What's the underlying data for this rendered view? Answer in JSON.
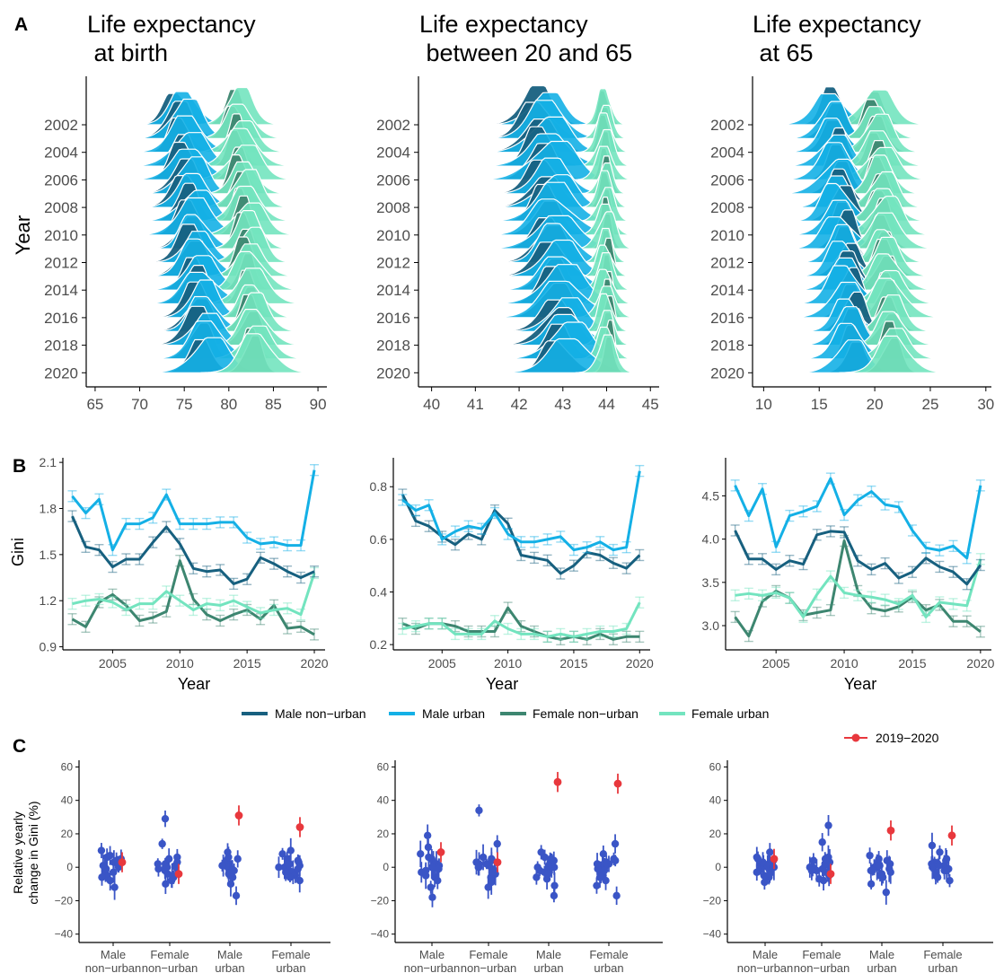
{
  "panel_letters": {
    "a": "A",
    "b": "B",
    "c": "C"
  },
  "colors": {
    "male_nonurban": "#17607f",
    "male_urban": "#14b0e6",
    "female_nonurban": "#3d8670",
    "female_urban": "#73e4bf",
    "highlight": "#e8383d",
    "other": "#3a55c6",
    "axis": "#000000",
    "tick_label": "#4d4d4d"
  },
  "panelA": {
    "ylabel": "Year",
    "year_ticks": [
      "2002",
      "2004",
      "2006",
      "2008",
      "2010",
      "2012",
      "2014",
      "2016",
      "2018",
      "2020"
    ],
    "subplots": [
      {
        "title_lines": [
          "Life expectancy",
          " at birth"
        ],
        "xlim": [
          64,
          91
        ],
        "xticks": [
          "65",
          "70",
          "75",
          "80",
          "85",
          "90"
        ]
      },
      {
        "title_lines": [
          "Life expectancy",
          " between 20 and 65"
        ],
        "xlim": [
          39.7,
          45.2
        ],
        "xticks": [
          "40",
          "41",
          "42",
          "43",
          "44",
          "45"
        ]
      },
      {
        "title_lines": [
          "Life expectancy",
          " at 65"
        ],
        "xlim": [
          9,
          30.5
        ],
        "xticks": [
          "10",
          "15",
          "20",
          "25",
          "30"
        ]
      }
    ]
  },
  "panelB": {
    "ylabel": "Gini",
    "xlabel": "Year",
    "xticks": [
      "2005",
      "2010",
      "2015",
      "2020"
    ]
  },
  "legend": {
    "items": [
      {
        "label": "Male non−urban",
        "color": "#17607f"
      },
      {
        "label": "Male urban",
        "color": "#14b0e6"
      },
      {
        "label": "Female non−urban",
        "color": "#3d8670"
      },
      {
        "label": "Female urban",
        "color": "#73e4bf"
      }
    ]
  },
  "panelC": {
    "legend_label": "2019−2020",
    "ylabel_lines": [
      "Relative yearly",
      "change in Gini (%)"
    ],
    "yticks": [
      "60",
      "40",
      "20",
      "0",
      "−20",
      "−40"
    ],
    "categories": [
      [
        "Male",
        "non−urban"
      ],
      [
        "Female",
        "non−urban"
      ],
      [
        "Male",
        "urban"
      ],
      [
        "Female",
        "urban"
      ]
    ]
  },
  "chart_data": [
    {
      "type": "ridgeline",
      "title": "Life expectancy at birth",
      "ylabel": "Year",
      "xlim": [
        64,
        91
      ],
      "years": [
        2002,
        2003,
        2004,
        2005,
        2006,
        2007,
        2008,
        2009,
        2010,
        2011,
        2012,
        2013,
        2014,
        2015,
        2016,
        2017,
        2018,
        2019,
        2020
      ],
      "series": [
        {
          "name": "Male non-urban",
          "peak_start": 74.3,
          "peak_end": 76.8,
          "sd": 1.4
        },
        {
          "name": "Male urban",
          "peak_start": 75.0,
          "peak_end": 77.9,
          "sd": 1.8
        },
        {
          "name": "Female non-urban",
          "peak_start": 80.6,
          "peak_end": 82.6,
          "sd": 1.0
        },
        {
          "name": "Female urban",
          "peak_start": 81.2,
          "peak_end": 83.3,
          "sd": 1.6
        }
      ]
    },
    {
      "type": "ridgeline",
      "title": "Life expectancy between 20 and 65",
      "ylabel": "Year",
      "xlim": [
        39.7,
        45.2
      ],
      "years": [
        2002,
        2003,
        2004,
        2005,
        2006,
        2007,
        2008,
        2009,
        2010,
        2011,
        2012,
        2013,
        2014,
        2015,
        2016,
        2017,
        2018,
        2019,
        2020
      ],
      "series": [
        {
          "name": "Male non-urban",
          "peak_start": 42.4,
          "peak_end": 42.9,
          "sd": 0.35
        },
        {
          "name": "Male urban",
          "peak_start": 42.6,
          "peak_end": 43.2,
          "sd": 0.45
        },
        {
          "name": "Female non-urban",
          "peak_start": 43.95,
          "peak_end": 44.05,
          "sd": 0.12
        },
        {
          "name": "Female urban",
          "peak_start": 43.95,
          "peak_end": 44.0,
          "sd": 0.18
        }
      ]
    },
    {
      "type": "ridgeline",
      "title": "Life expectancy at 65",
      "ylabel": "Year",
      "xlim": [
        9,
        30.5
      ],
      "years": [
        2002,
        2003,
        2004,
        2005,
        2006,
        2007,
        2008,
        2009,
        2010,
        2011,
        2012,
        2013,
        2014,
        2015,
        2016,
        2017,
        2018,
        2019,
        2020
      ],
      "series": [
        {
          "name": "Male non-urban",
          "peak_start": 16.3,
          "peak_end": 18.3,
          "sd": 1.0
        },
        {
          "name": "Male urban",
          "peak_start": 16.0,
          "peak_end": 17.8,
          "sd": 1.3
        },
        {
          "name": "Female non-urban",
          "peak_start": 19.9,
          "peak_end": 21.4,
          "sd": 0.9
        },
        {
          "name": "Female urban",
          "peak_start": 20.1,
          "peak_end": 21.8,
          "sd": 1.3
        }
      ]
    },
    {
      "type": "line",
      "ylabel": "Gini",
      "xlabel": "Year",
      "xlim": [
        2001.3,
        2020.8
      ],
      "ylim": [
        0.88,
        2.13
      ],
      "yticks": [
        0.9,
        1.2,
        1.5,
        1.8,
        2.1
      ],
      "x": [
        2002,
        2003,
        2004,
        2005,
        2006,
        2007,
        2008,
        2009,
        2010,
        2011,
        2012,
        2013,
        2014,
        2015,
        2016,
        2017,
        2018,
        2019,
        2020
      ],
      "series": [
        {
          "name": "Male non-urban",
          "values": [
            1.75,
            1.55,
            1.53,
            1.42,
            1.47,
            1.47,
            1.58,
            1.68,
            1.57,
            1.41,
            1.39,
            1.4,
            1.31,
            1.34,
            1.48,
            1.44,
            1.39,
            1.35,
            1.39
          ]
        },
        {
          "name": "Male urban",
          "values": [
            1.88,
            1.77,
            1.86,
            1.53,
            1.7,
            1.7,
            1.74,
            1.89,
            1.7,
            1.7,
            1.7,
            1.71,
            1.71,
            1.61,
            1.57,
            1.58,
            1.56,
            1.56,
            2.05
          ]
        },
        {
          "name": "Female non-urban",
          "values": [
            1.08,
            1.03,
            1.19,
            1.24,
            1.17,
            1.07,
            1.09,
            1.13,
            1.46,
            1.21,
            1.11,
            1.07,
            1.11,
            1.14,
            1.08,
            1.17,
            1.02,
            1.03,
            0.98
          ]
        },
        {
          "name": "Female urban",
          "values": [
            1.18,
            1.2,
            1.21,
            1.19,
            1.14,
            1.18,
            1.18,
            1.26,
            1.2,
            1.14,
            1.18,
            1.17,
            1.2,
            1.16,
            1.12,
            1.14,
            1.15,
            1.11,
            1.38
          ]
        }
      ]
    },
    {
      "type": "line",
      "xlabel": "Year",
      "xlim": [
        2001.3,
        2020.8
      ],
      "ylim": [
        0.18,
        0.91
      ],
      "yticks": [
        0.2,
        0.4,
        0.6,
        0.8
      ],
      "x": [
        2002,
        2003,
        2004,
        2005,
        2006,
        2007,
        2008,
        2009,
        2010,
        2011,
        2012,
        2013,
        2014,
        2015,
        2016,
        2017,
        2018,
        2019,
        2020
      ],
      "series": [
        {
          "name": "Male non-urban",
          "values": [
            0.77,
            0.67,
            0.65,
            0.61,
            0.58,
            0.62,
            0.6,
            0.71,
            0.66,
            0.54,
            0.53,
            0.52,
            0.47,
            0.5,
            0.55,
            0.54,
            0.51,
            0.49,
            0.54
          ]
        },
        {
          "name": "Male urban",
          "values": [
            0.75,
            0.71,
            0.73,
            0.6,
            0.63,
            0.65,
            0.64,
            0.7,
            0.62,
            0.59,
            0.59,
            0.6,
            0.61,
            0.56,
            0.57,
            0.59,
            0.56,
            0.57,
            0.86
          ]
        },
        {
          "name": "Female non-urban",
          "values": [
            0.28,
            0.26,
            0.28,
            0.28,
            0.27,
            0.25,
            0.25,
            0.25,
            0.34,
            0.27,
            0.25,
            0.23,
            0.22,
            0.23,
            0.22,
            0.24,
            0.22,
            0.23,
            0.23
          ]
        },
        {
          "name": "Female urban",
          "values": [
            0.26,
            0.27,
            0.28,
            0.28,
            0.24,
            0.24,
            0.24,
            0.29,
            0.26,
            0.24,
            0.24,
            0.23,
            0.24,
            0.23,
            0.24,
            0.25,
            0.25,
            0.26,
            0.36
          ]
        }
      ]
    },
    {
      "type": "line",
      "xlabel": "Year",
      "xlim": [
        2001.3,
        2020.8
      ],
      "ylim": [
        2.72,
        4.94
      ],
      "yticks": [
        3.0,
        3.5,
        4.0,
        4.5
      ],
      "x": [
        2002,
        2003,
        2004,
        2005,
        2006,
        2007,
        2008,
        2009,
        2010,
        2011,
        2012,
        2013,
        2014,
        2015,
        2016,
        2017,
        2018,
        2019,
        2020
      ],
      "series": [
        {
          "name": "Male non-urban",
          "values": [
            4.1,
            3.77,
            3.77,
            3.65,
            3.75,
            3.71,
            4.05,
            4.09,
            4.08,
            3.75,
            3.65,
            3.72,
            3.55,
            3.62,
            3.78,
            3.68,
            3.62,
            3.48,
            3.7
          ]
        },
        {
          "name": "Male urban",
          "values": [
            4.62,
            4.27,
            4.58,
            3.91,
            4.27,
            4.32,
            4.38,
            4.7,
            4.28,
            4.45,
            4.55,
            4.4,
            4.37,
            4.1,
            3.9,
            3.87,
            3.92,
            3.78,
            4.62
          ]
        },
        {
          "name": "Female non-urban",
          "values": [
            3.1,
            2.88,
            3.28,
            3.4,
            3.32,
            3.12,
            3.15,
            3.18,
            3.98,
            3.4,
            3.2,
            3.17,
            3.22,
            3.33,
            3.18,
            3.24,
            3.05,
            3.05,
            2.93
          ]
        },
        {
          "name": "Female urban",
          "values": [
            3.35,
            3.37,
            3.35,
            3.38,
            3.32,
            3.1,
            3.36,
            3.57,
            3.38,
            3.35,
            3.33,
            3.3,
            3.25,
            3.35,
            3.1,
            3.27,
            3.25,
            3.23,
            3.77
          ]
        }
      ]
    },
    {
      "type": "scatter",
      "ylabel": "Relative yearly change in Gini (%)",
      "ylim": [
        -45,
        64
      ],
      "categories": [
        "Male non-urban",
        "Female non-urban",
        "Male urban",
        "Female urban"
      ],
      "series": [
        {
          "name": "other years",
          "values": [
            [
              -12,
              -5,
              -2,
              0,
              2,
              3,
              5,
              6,
              -8,
              -1,
              1,
              10,
              7,
              -3,
              4,
              0,
              -6,
              2
            ],
            [
              -6,
              0,
              2,
              14,
              29,
              5,
              -2,
              -10,
              3,
              -4,
              1,
              0,
              6,
              -1,
              -8,
              2,
              0,
              -5
            ],
            [
              -17,
              -10,
              -4,
              1,
              5,
              9,
              -2,
              0,
              4,
              -6,
              2,
              -1,
              3,
              0,
              -3,
              1,
              -2,
              6
            ],
            [
              -8,
              -5,
              -3,
              0,
              2,
              5,
              8,
              10,
              -1,
              3,
              0,
              -2,
              4,
              1,
              -6,
              2,
              0,
              -3
            ]
          ]
        },
        {
          "name": "2019−2020",
          "values": [
            3,
            -4,
            31,
            24
          ]
        }
      ]
    },
    {
      "type": "scatter",
      "ylim": [
        -45,
        64
      ],
      "categories": [
        "Male non-urban",
        "Female non-urban",
        "Male urban",
        "Female urban"
      ],
      "series": [
        {
          "name": "other years",
          "values": [
            [
              -18,
              -12,
              -6,
              -3,
              0,
              2,
              5,
              8,
              12,
              19,
              -2,
              1,
              -8,
              3,
              0,
              -5,
              6,
              -1
            ],
            [
              -9,
              -6,
              -2,
              0,
              2,
              5,
              14,
              34,
              -4,
              1,
              3,
              -1,
              6,
              0,
              -12,
              2,
              -3,
              4
            ],
            [
              -17,
              -11,
              -6,
              -2,
              1,
              3,
              6,
              9,
              -3,
              0,
              2,
              -1,
              4,
              1,
              -7,
              5,
              0,
              -4
            ],
            [
              -17,
              -11,
              -6,
              -3,
              0,
              2,
              5,
              8,
              14,
              -1,
              3,
              0,
              -5,
              2,
              -8,
              4,
              1,
              -2
            ]
          ]
        },
        {
          "name": "2019−2020",
          "values": [
            9,
            3,
            51,
            50
          ]
        }
      ]
    },
    {
      "type": "scatter",
      "ylim": [
        -45,
        64
      ],
      "categories": [
        "Male non-urban",
        "Female non-urban",
        "Male urban",
        "Female urban"
      ],
      "series": [
        {
          "name": "other years",
          "values": [
            [
              -9,
              -6,
              -3,
              0,
              2,
              4,
              6,
              9,
              -1,
              1,
              3,
              -2,
              5,
              0,
              -5,
              2,
              -4,
              1
            ],
            [
              -8,
              -5,
              -2,
              0,
              3,
              6,
              15,
              25,
              -3,
              1,
              4,
              -1,
              2,
              0,
              -7,
              3,
              -2,
              5
            ],
            [
              -15,
              -10,
              -5,
              -2,
              1,
              4,
              7,
              -3,
              0,
              2,
              -1,
              5,
              0,
              -6,
              3,
              -2,
              1,
              -4
            ],
            [
              -8,
              -5,
              -2,
              0,
              2,
              5,
              9,
              13,
              -1,
              3,
              1,
              -3,
              4,
              0,
              -6,
              2,
              -2,
              1
            ]
          ]
        },
        {
          "name": "2019−2020",
          "values": [
            5,
            -4,
            22,
            19
          ]
        }
      ]
    }
  ]
}
